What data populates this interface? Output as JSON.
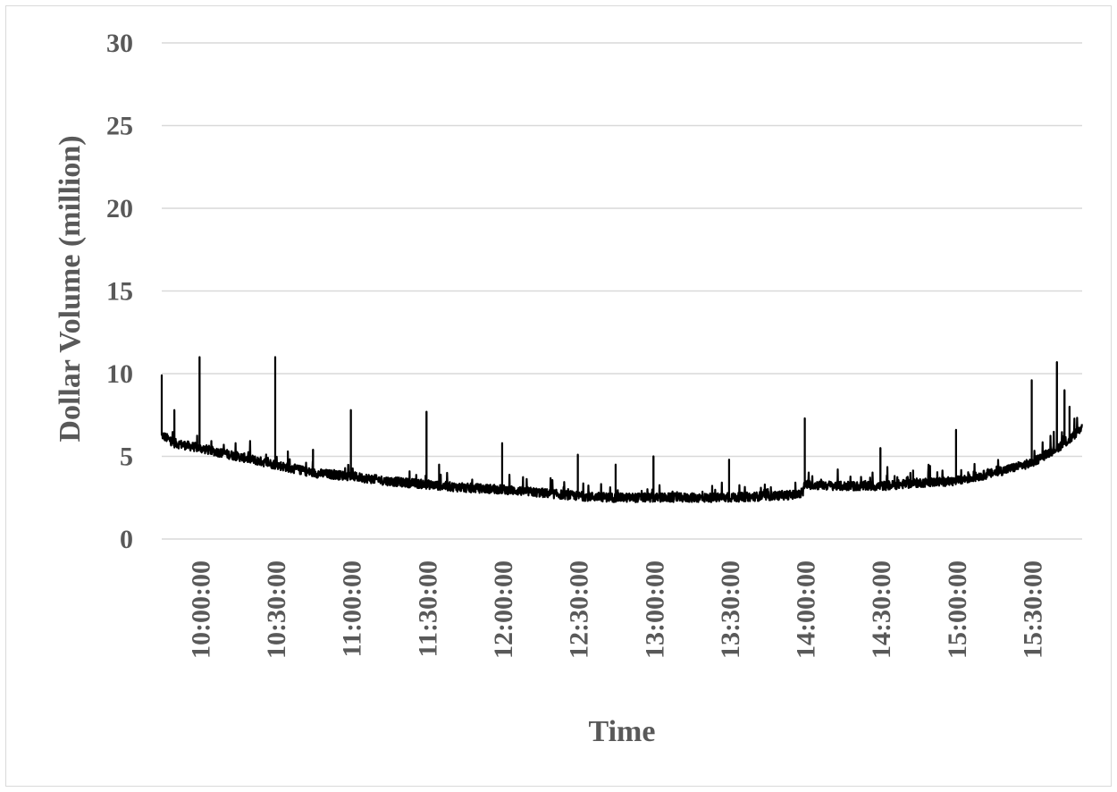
{
  "chart_data": {
    "type": "line",
    "title": "",
    "xlabel": "Time",
    "ylabel": "Dollar Volume (million)",
    "ylim": [
      0,
      30
    ],
    "yticks": [
      "0",
      "5",
      "10",
      "15",
      "20",
      "25",
      "30"
    ],
    "xlim": [
      "09:45:00",
      "15:50:00"
    ],
    "xticks": [
      "10:00:00",
      "10:30:00",
      "11:00:00",
      "11:30:00",
      "12:00:00",
      "12:30:00",
      "13:00:00",
      "13:30:00",
      "14:00:00",
      "14:30:00",
      "15:00:00",
      "15:30:00"
    ],
    "grid": true,
    "legend": "none",
    "series_color": "#000000",
    "series": [
      {
        "name": "",
        "baseline": {
          "x": [
            "09:45:00",
            "09:50:00",
            "10:00:00",
            "10:15:00",
            "10:30:00",
            "10:45:00",
            "11:00:00",
            "11:15:00",
            "11:30:00",
            "11:45:00",
            "12:00:00",
            "12:15:00",
            "12:30:00",
            "12:45:00",
            "13:00:00",
            "13:15:00",
            "13:30:00",
            "13:45:00",
            "13:59:00",
            "14:00:00",
            "14:15:00",
            "14:30:00",
            "14:45:00",
            "15:00:00",
            "15:15:00",
            "15:30:00",
            "15:40:00",
            "15:45:00",
            "15:50:00"
          ],
          "y": [
            6.3,
            5.8,
            5.5,
            5.0,
            4.5,
            4.0,
            3.8,
            3.5,
            3.3,
            3.1,
            3.0,
            2.8,
            2.6,
            2.5,
            2.5,
            2.5,
            2.5,
            2.6,
            2.7,
            3.3,
            3.2,
            3.2,
            3.4,
            3.5,
            4.0,
            4.6,
            5.5,
            6.0,
            6.8
          ]
        },
        "spikes": {
          "x": [
            "09:45:00",
            "09:50:00",
            "10:00:00",
            "10:30:00",
            "10:35:00",
            "10:45:00",
            "11:00:00",
            "11:30:00",
            "11:35:00",
            "12:00:00",
            "12:30:00",
            "12:45:00",
            "13:00:00",
            "13:30:00",
            "14:00:00",
            "14:30:00",
            "15:00:00",
            "15:30:00",
            "15:40:00",
            "15:43:00",
            "15:45:00"
          ],
          "y": [
            9.9,
            7.8,
            11.0,
            11.0,
            5.3,
            5.4,
            7.8,
            7.7,
            4.5,
            5.8,
            5.1,
            4.5,
            5.0,
            4.8,
            7.3,
            5.5,
            6.6,
            9.6,
            10.7,
            9.0,
            8.0
          ]
        }
      }
    ]
  }
}
